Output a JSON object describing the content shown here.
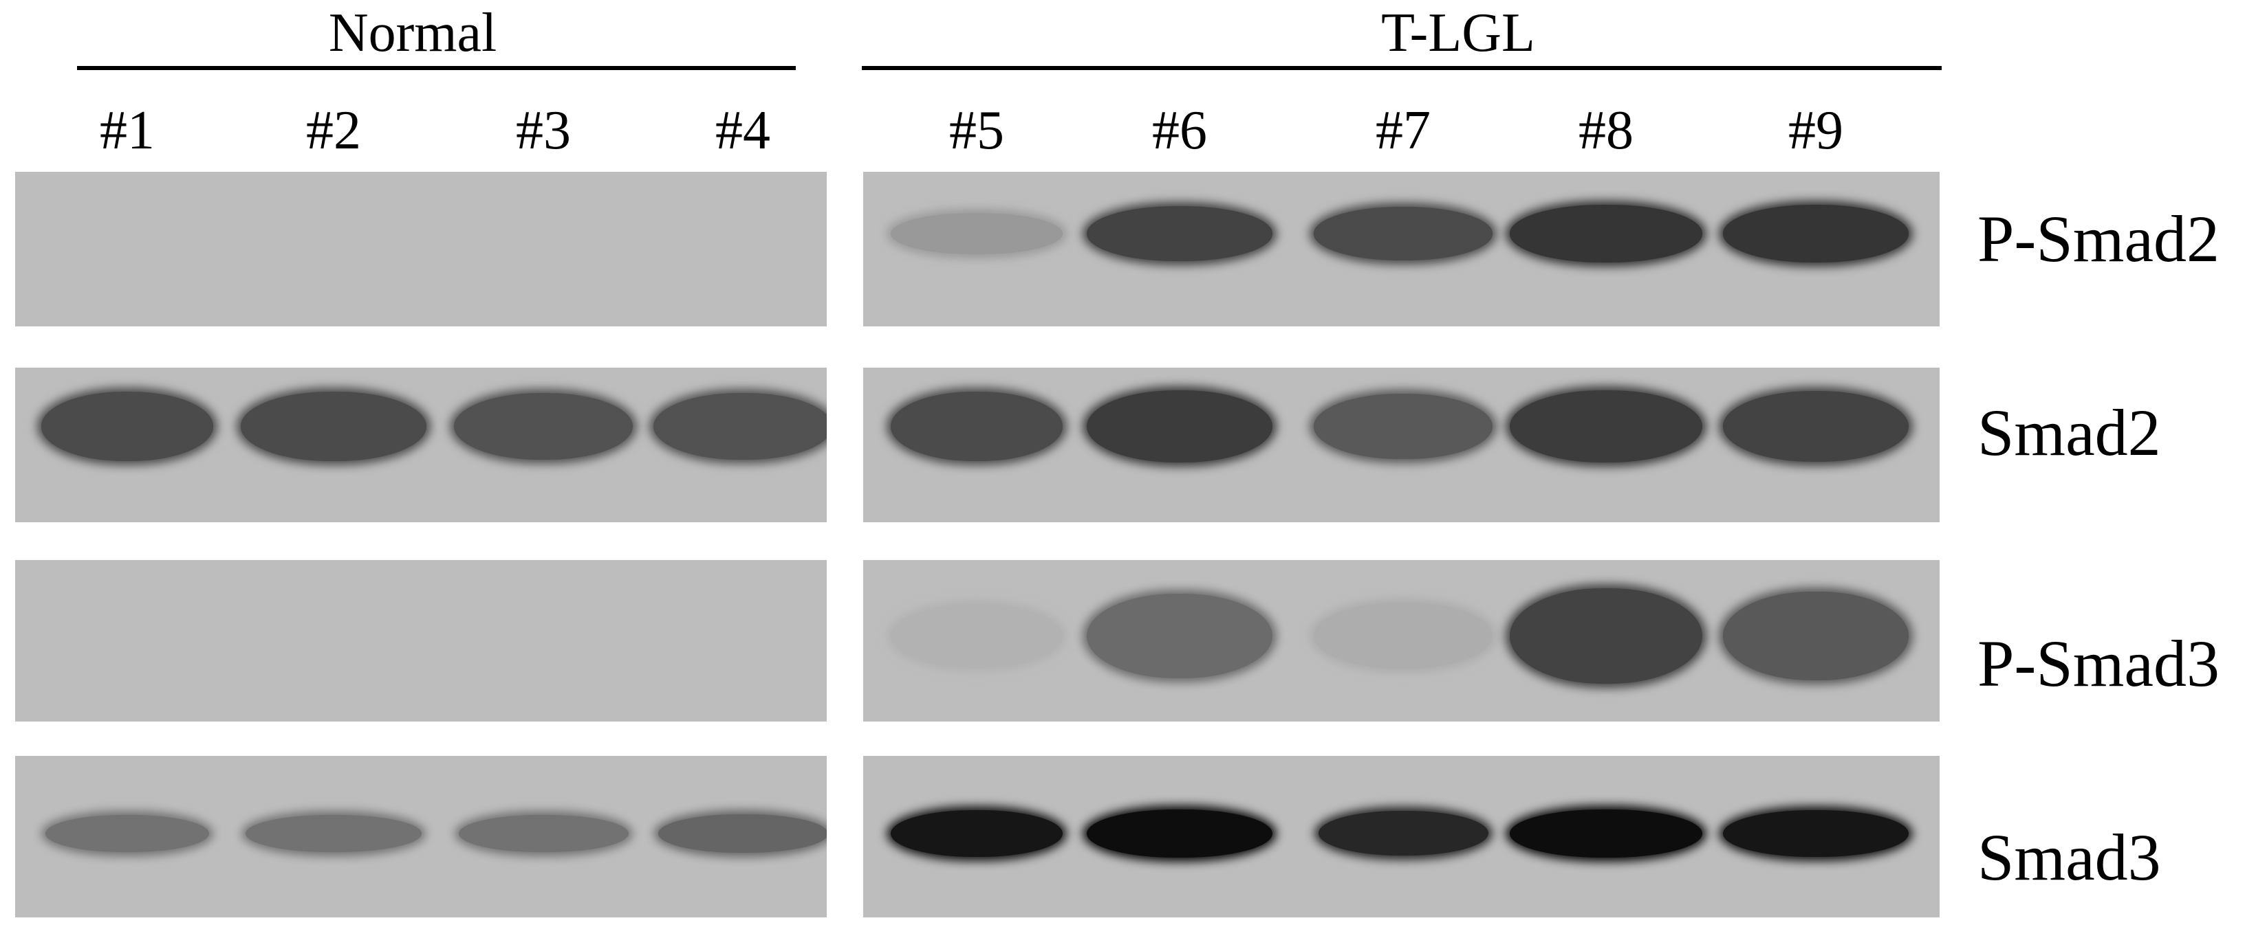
{
  "groups": [
    {
      "label": "Normal"
    },
    {
      "label": "T-LGL"
    }
  ],
  "lanes": [
    "#1",
    "#2",
    "#3",
    "#4",
    "#5",
    "#6",
    "#7",
    "#8",
    "#9"
  ],
  "rows": [
    "P-Smad2",
    "Smad2",
    "P-Smad3",
    "Smad3"
  ],
  "band_intensity": {
    "P-Smad2": [
      0,
      0,
      0,
      0,
      0.35,
      0.85,
      0.8,
      0.95,
      0.95
    ],
    "Smad2": [
      0.8,
      0.8,
      0.75,
      0.75,
      0.8,
      0.9,
      0.7,
      0.9,
      0.85
    ],
    "P-Smad3": [
      0,
      0,
      0,
      0,
      0.15,
      0.6,
      0.2,
      0.85,
      0.7
    ],
    "Smad3": [
      0.5,
      0.5,
      0.5,
      0.55,
      0.95,
      1.0,
      0.85,
      1.0,
      0.95
    ]
  },
  "colors": {
    "background": "#bdbdbd",
    "band_dark": "#2e2e2e",
    "band_black": "#0d0d0d"
  }
}
